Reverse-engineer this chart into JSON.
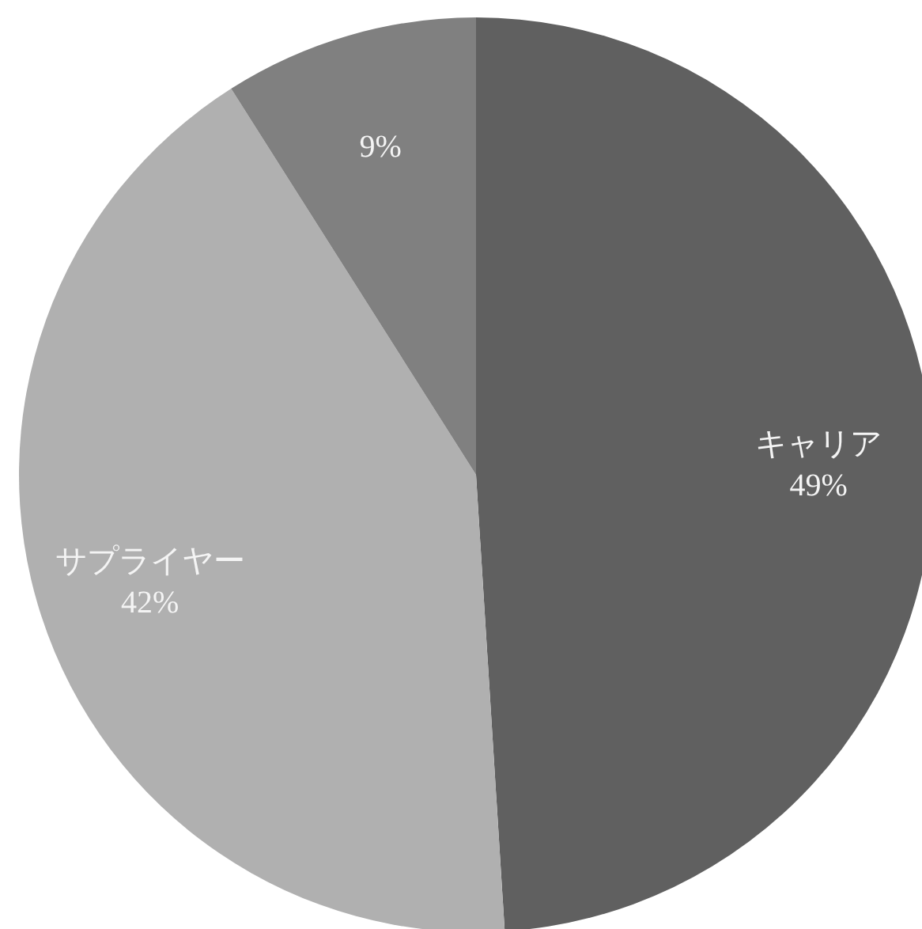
{
  "chart_data": {
    "type": "pie",
    "categories": [
      "キャリア",
      "サプライヤー",
      null
    ],
    "values": [
      49,
      42,
      9
    ],
    "colors": [
      "#606060",
      "#b0b0b0",
      "#808080"
    ],
    "value_labels": [
      "49%",
      "42%",
      "9%"
    ]
  }
}
